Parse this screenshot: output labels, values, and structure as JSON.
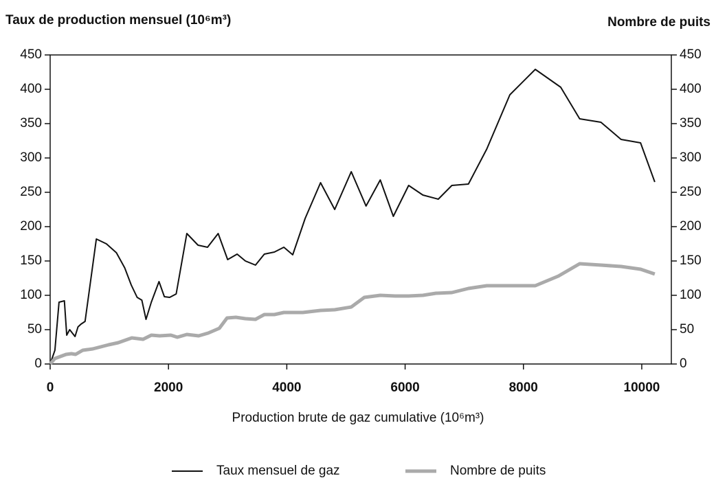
{
  "chart_data": {
    "type": "line",
    "y_label": "Taux de production mensuel (10⁶m³)",
    "y2_label": "Nombre de puits",
    "x_label": "Production brute de gaz cumulative (10⁶m³)",
    "xlim": [
      0,
      10500
    ],
    "xticks": [
      0,
      2000,
      4000,
      6000,
      8000,
      10000
    ],
    "ylim": [
      0,
      450
    ],
    "yticks": [
      0,
      50,
      100,
      150,
      200,
      250,
      300,
      350,
      400,
      450
    ],
    "y2lim": [
      0,
      450
    ],
    "y2ticks": [
      0,
      50,
      100,
      150,
      200,
      250,
      300,
      350,
      400,
      450
    ],
    "series": [
      {
        "name": "Taux mensuel de gaz",
        "color": "#111111",
        "x": [
          0,
          80,
          150,
          240,
          280,
          330,
          420,
          470,
          520,
          590,
          780,
          950,
          1120,
          1260,
          1370,
          1470,
          1550,
          1620,
          1710,
          1840,
          1930,
          2020,
          2130,
          2310,
          2500,
          2660,
          2840,
          3000,
          3160,
          3300,
          3470,
          3620,
          3790,
          3950,
          4100,
          4310,
          4570,
          4810,
          5090,
          5340,
          5580,
          5800,
          6060,
          6300,
          6560,
          6790,
          7070,
          7380,
          7770,
          8200,
          8630,
          8950,
          9310,
          9650,
          9980,
          10220
        ],
        "values": [
          0,
          20,
          90,
          92,
          42,
          50,
          40,
          54,
          58,
          62,
          182,
          175,
          162,
          140,
          115,
          97,
          93,
          65,
          90,
          120,
          98,
          97,
          102,
          190,
          173,
          170,
          190,
          152,
          160,
          150,
          144,
          160,
          163,
          170,
          159,
          212,
          264,
          225,
          280,
          230,
          268,
          215,
          260,
          246,
          240,
          260,
          262,
          313,
          392,
          429,
          403,
          357,
          352,
          327,
          322,
          265
        ]
      },
      {
        "name": "Nombre de puits",
        "color": "#aaaaaa",
        "axis": "y2",
        "x": [
          0,
          80,
          270,
          360,
          430,
          550,
          720,
          990,
          1150,
          1380,
          1570,
          1710,
          1850,
          2040,
          2150,
          2310,
          2510,
          2670,
          2860,
          2990,
          3140,
          3300,
          3470,
          3620,
          3790,
          3950,
          4270,
          4570,
          4810,
          5090,
          5310,
          5580,
          5830,
          6060,
          6300,
          6520,
          6790,
          7070,
          7380,
          7770,
          8200,
          8590,
          8950,
          9310,
          9650,
          9980,
          10220
        ],
        "values": [
          0,
          8,
          14,
          15,
          14,
          20,
          22,
          28,
          31,
          38,
          36,
          42,
          41,
          42,
          39,
          43,
          41,
          45,
          52,
          67,
          68,
          66,
          65,
          72,
          72,
          75,
          75,
          78,
          79,
          83,
          97,
          100,
          99,
          99,
          100,
          103,
          104,
          110,
          114,
          114,
          114,
          128,
          146,
          144,
          142,
          138,
          131
        ]
      }
    ]
  }
}
